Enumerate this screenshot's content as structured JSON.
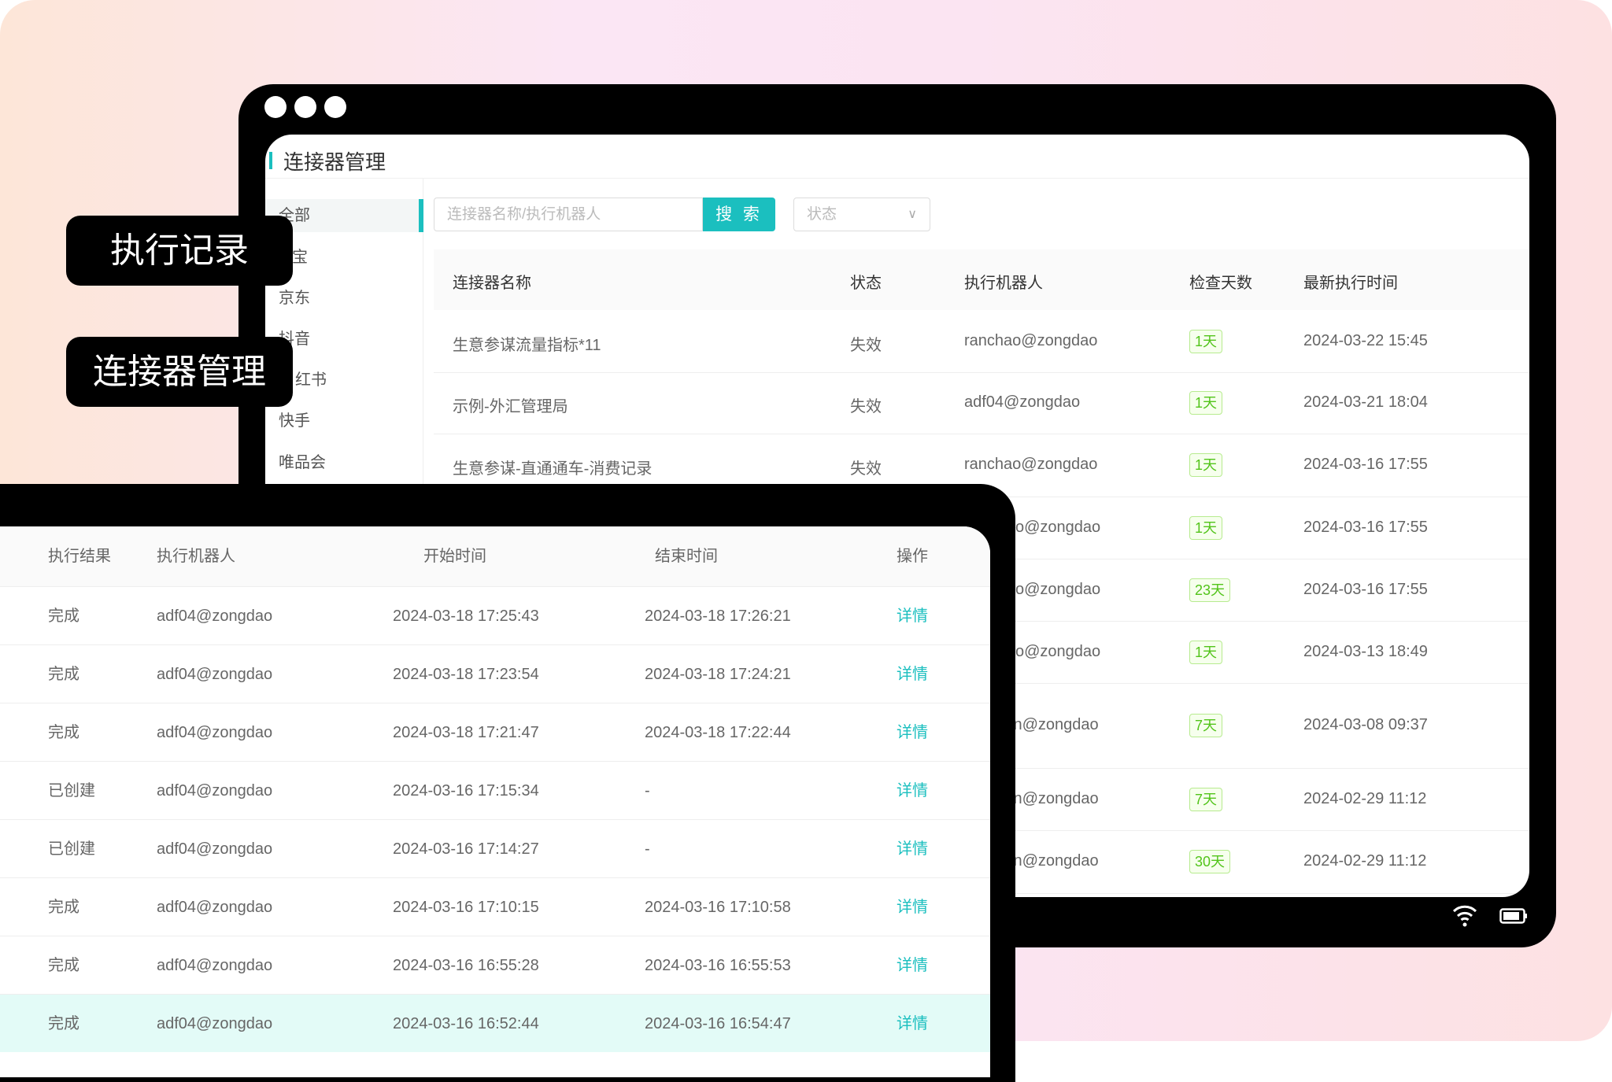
{
  "labels": {
    "exec_records": "执行记录",
    "connector_mgmt": "连接器管理"
  },
  "connector_window": {
    "title": "连接器管理",
    "sidebar": [
      "全部",
      "宝",
      "京东",
      "抖音",
      "红书",
      "快手",
      "唯品会"
    ],
    "search": {
      "placeholder": "连接器名称/执行机器人",
      "button": "搜 索"
    },
    "status_select": {
      "placeholder": "状态"
    },
    "columns": [
      "连接器名称",
      "状态",
      "执行机器人",
      "检查天数",
      "最新执行时间"
    ],
    "rows": [
      {
        "name": "生意参谋流量指标*11",
        "status": "失效",
        "robot": "ranchao@zongdao",
        "days": "1天",
        "time": "2024-03-22 15:45"
      },
      {
        "name": "示例-外汇管理局",
        "status": "失效",
        "robot": "adf04@zongdao",
        "days": "1天",
        "time": "2024-03-21 18:04"
      },
      {
        "name": "生意参谋-直通通车-消费记录",
        "status": "失效",
        "robot": "ranchao@zongdao",
        "days": "1天",
        "time": "2024-03-16 17:55"
      },
      {
        "name": "",
        "status": "",
        "robot": "o@zongdao",
        "days": "1天",
        "time": "2024-03-16 17:55"
      },
      {
        "name": "",
        "status": "",
        "robot": "o@zongdao",
        "days": "23天",
        "time": "2024-03-16 17:55"
      },
      {
        "name": "",
        "status": "",
        "robot": "o@zongdao",
        "days": "1天",
        "time": "2024-03-13 18:49"
      },
      {
        "name": "",
        "status": "",
        "robot": "in@zongdao",
        "days": "7天",
        "time": "2024-03-08 09:37"
      },
      {
        "name": "",
        "status": "",
        "robot": "in@zongdao",
        "days": "7天",
        "time": "2024-02-29 11:12"
      },
      {
        "name": "",
        "status": "",
        "robot": "in@zongdao",
        "days": "30天",
        "time": "2024-02-29 11:12"
      }
    ]
  },
  "records_window": {
    "columns": [
      "执行结果",
      "执行机器人",
      "开始时间",
      "结束时间",
      "操作"
    ],
    "rows": [
      {
        "result": "完成",
        "robot": "adf04@zongdao",
        "start": "2024-03-18 17:25:43",
        "end": "2024-03-18 17:26:21",
        "action": "详情"
      },
      {
        "result": "完成",
        "robot": "adf04@zongdao",
        "start": "2024-03-18 17:23:54",
        "end": "2024-03-18 17:24:21",
        "action": "详情"
      },
      {
        "result": "完成",
        "robot": "adf04@zongdao",
        "start": "2024-03-18 17:21:47",
        "end": "2024-03-18 17:22:44",
        "action": "详情"
      },
      {
        "result": "已创建",
        "robot": "adf04@zongdao",
        "start": "2024-03-16 17:15:34",
        "end": "-",
        "action": "详情"
      },
      {
        "result": "已创建",
        "robot": "adf04@zongdao",
        "start": "2024-03-16 17:14:27",
        "end": "-",
        "action": "详情"
      },
      {
        "result": "完成",
        "robot": "adf04@zongdao",
        "start": "2024-03-16 17:10:15",
        "end": "2024-03-16 17:10:58",
        "action": "详情"
      },
      {
        "result": "完成",
        "robot": "adf04@zongdao",
        "start": "2024-03-16 16:55:28",
        "end": "2024-03-16 16:55:53",
        "action": "详情"
      },
      {
        "result": "完成",
        "robot": "adf04@zongdao",
        "start": "2024-03-16 16:52:44",
        "end": "2024-03-16 16:54:47",
        "action": "详情",
        "highlighted": true
      }
    ]
  },
  "colors": {
    "accent": "#1bbfbf",
    "badge_green": "#52c41a",
    "highlight_row": "#e3fbf7"
  },
  "icons": [
    "wifi-icon",
    "battery-icon",
    "window-dot-icon"
  ]
}
